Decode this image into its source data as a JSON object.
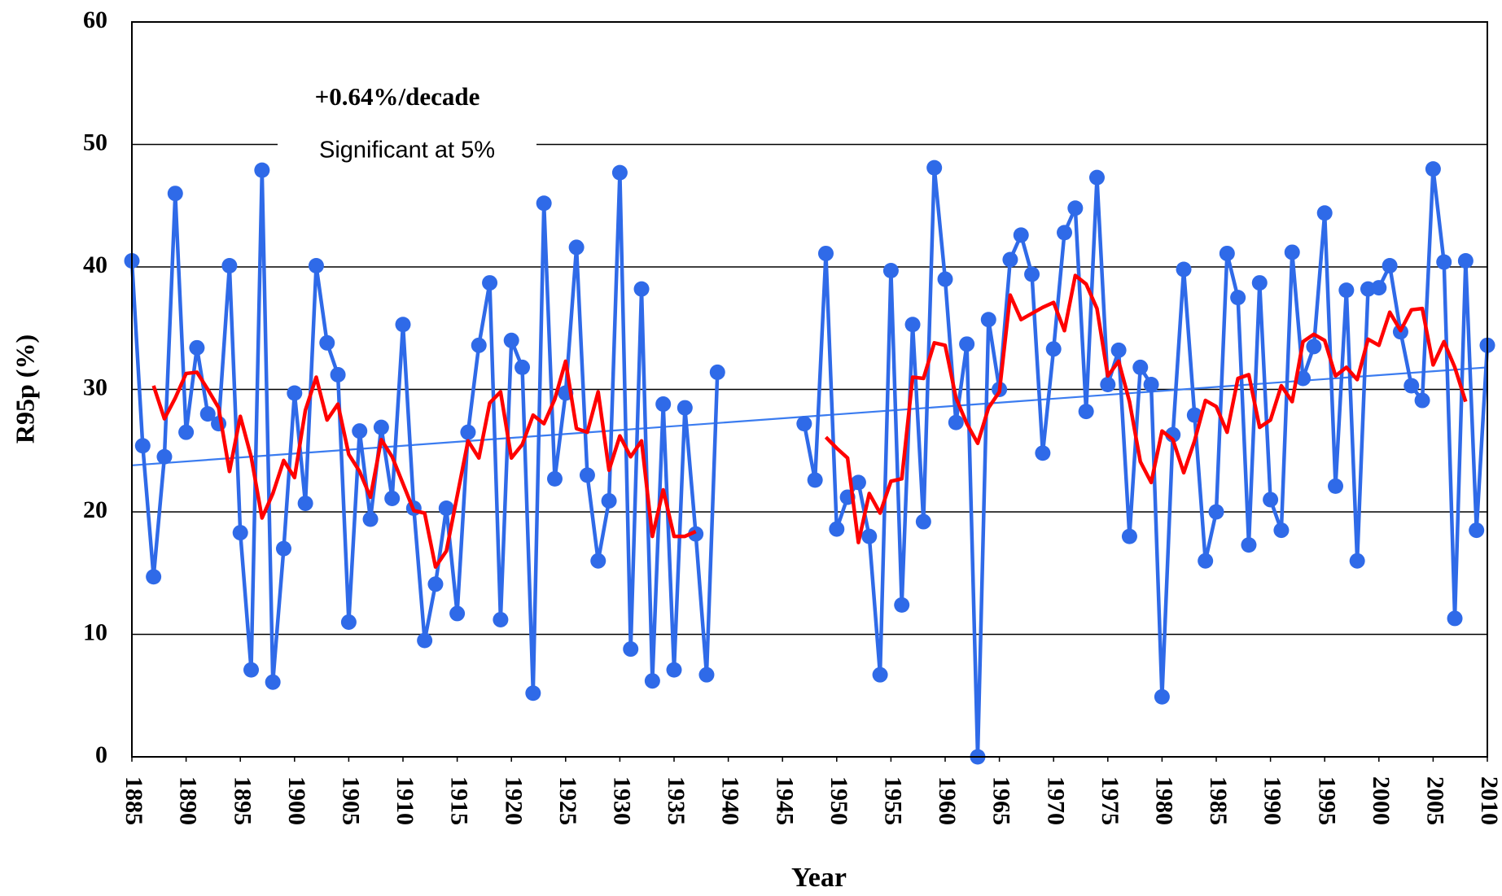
{
  "chart_data": {
    "type": "line",
    "x_label": "Year",
    "y_label": "R95p (%)",
    "annotations": [
      "+0.64%/decade",
      "Significant at 5%"
    ],
    "x": [
      1885,
      1886,
      1887,
      1888,
      1889,
      1890,
      1891,
      1892,
      1893,
      1894,
      1895,
      1896,
      1897,
      1898,
      1899,
      1900,
      1901,
      1902,
      1903,
      1904,
      1905,
      1906,
      1907,
      1908,
      1909,
      1910,
      1911,
      1912,
      1913,
      1914,
      1915,
      1916,
      1917,
      1918,
      1919,
      1920,
      1921,
      1922,
      1923,
      1924,
      1925,
      1926,
      1927,
      1928,
      1929,
      1930,
      1931,
      1932,
      1933,
      1934,
      1935,
      1936,
      1937,
      1938,
      1939,
      1940,
      1941,
      1942,
      1943,
      1944,
      1945,
      1946,
      1947,
      1948,
      1949,
      1950,
      1951,
      1952,
      1953,
      1954,
      1955,
      1956,
      1957,
      1958,
      1959,
      1960,
      1961,
      1962,
      1963,
      1964,
      1965,
      1966,
      1967,
      1968,
      1969,
      1970,
      1971,
      1972,
      1973,
      1974,
      1975,
      1976,
      1977,
      1978,
      1979,
      1980,
      1981,
      1982,
      1983,
      1984,
      1985,
      1986,
      1987,
      1988,
      1989,
      1990,
      1991,
      1992,
      1993,
      1994,
      1995,
      1996,
      1997,
      1998,
      1999,
      2000,
      2001,
      2002,
      2003,
      2004,
      2005,
      2006,
      2007,
      2008,
      2009,
      2010
    ],
    "series": [
      {
        "color": "#2f6ae8",
        "markers": true,
        "values": [
          40.5,
          25.4,
          14.7,
          24.5,
          46.0,
          26.5,
          33.4,
          28.0,
          27.2,
          40.1,
          18.3,
          7.1,
          47.9,
          6.1,
          17.0,
          29.7,
          20.7,
          40.1,
          33.8,
          31.2,
          11.0,
          26.6,
          19.4,
          26.9,
          21.1,
          35.3,
          20.3,
          9.5,
          14.1,
          20.3,
          11.7,
          26.5,
          33.6,
          38.7,
          11.2,
          34.0,
          31.8,
          5.2,
          45.2,
          22.7,
          29.7,
          41.6,
          23.0,
          16.0,
          20.9,
          47.7,
          8.8,
          38.2,
          6.2,
          28.8,
          7.1,
          28.5,
          18.2,
          6.7,
          31.4,
          null,
          null,
          null,
          null,
          null,
          null,
          null,
          27.2,
          22.6,
          41.1,
          18.6,
          21.2,
          22.4,
          18.0,
          6.7,
          39.7,
          12.4,
          35.3,
          19.2,
          48.1,
          39.0,
          27.3,
          33.7,
          0,
          35.7,
          30.0,
          40.6,
          42.6,
          39.4,
          24.8,
          33.3,
          42.8,
          44.8,
          28.2,
          47.3,
          30.4,
          33.2,
          18.0,
          31.8,
          30.4,
          4.9,
          26.3,
          39.8,
          27.9,
          16.0,
          20.0,
          41.1,
          37.5,
          17.3,
          38.7,
          21.0,
          18.5,
          41.2,
          30.9,
          33.5,
          44.4,
          22.1,
          38.1,
          16.0,
          38.2,
          38.3,
          40.1,
          34.7,
          30.3,
          29.1,
          48.0,
          40.4,
          11.3,
          40.5,
          18.5,
          33.6
        ]
      },
      {
        "color": "#ff0000",
        "markers": false,
        "values": [
          null,
          null,
          30.3,
          27.6,
          29.3,
          31.3,
          31.4,
          30.0,
          28.5,
          23.3,
          27.8,
          24.5,
          19.5,
          21.5,
          24.2,
          22.8,
          28.3,
          31.0,
          27.5,
          28.8,
          24.7,
          23.3,
          21.2,
          25.9,
          24.5,
          22.3,
          20.1,
          19.9,
          15.5,
          16.8,
          21.3,
          25.8,
          24.4,
          28.9,
          29.8,
          24.4,
          25.5,
          27.9,
          27.2,
          29.2,
          32.3,
          26.8,
          26.5,
          29.8,
          23.4,
          26.2,
          24.5,
          25.8,
          18.0,
          21.8,
          18.0,
          18.0,
          18.4,
          null,
          null,
          null,
          null,
          null,
          null,
          null,
          null,
          null,
          null,
          null,
          26.1,
          25.2,
          24.4,
          17.5,
          21.5,
          19.9,
          22.5,
          22.7,
          31.0,
          30.9,
          33.8,
          33.6,
          29.3,
          27.2,
          25.6,
          28.5,
          29.8,
          37.7,
          35.7,
          36.2,
          36.7,
          37.1,
          34.8,
          39.3,
          38.6,
          36.6,
          31.1,
          32.3,
          29.0,
          24.1,
          22.4,
          26.6,
          25.9,
          23.2,
          25.8,
          29.1,
          28.6,
          26.5,
          30.9,
          31.2,
          26.9,
          27.5,
          30.3,
          29.0,
          33.9,
          34.5,
          34.0,
          31.1,
          31.8,
          30.8,
          34.1,
          33.6,
          36.3,
          34.8,
          36.5,
          36.6,
          32.0,
          33.9,
          31.8,
          29.0,
          null,
          null
        ]
      }
    ],
    "trend": {
      "color": "#3b7cf0",
      "x": [
        1885,
        2010
      ],
      "values": [
        23.8,
        31.8
      ]
    },
    "xlim": [
      1885,
      2010
    ],
    "xticks": [
      1885,
      1890,
      1895,
      1900,
      1905,
      1910,
      1915,
      1920,
      1925,
      1930,
      1935,
      1940,
      1945,
      1950,
      1955,
      1960,
      1965,
      1970,
      1975,
      1980,
      1985,
      1990,
      1995,
      2000,
      2005,
      2010
    ],
    "ylim": [
      0,
      60
    ],
    "yticks": [
      0,
      10,
      20,
      30,
      40,
      50,
      60
    ],
    "grid": true
  }
}
